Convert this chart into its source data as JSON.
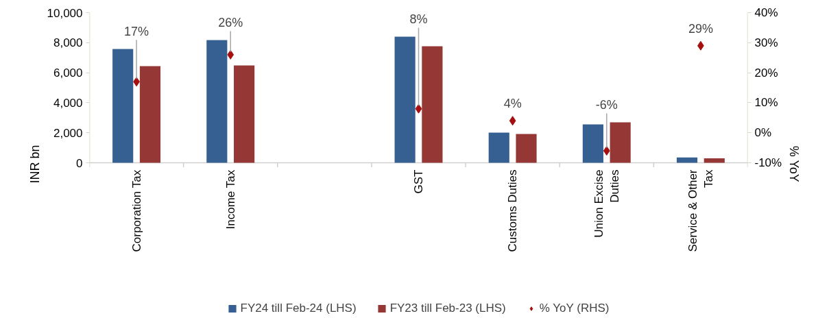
{
  "chart_data": {
    "type": "bar",
    "categories": [
      "Corporation Tax",
      "Income Tax",
      null,
      "GST",
      "Customs Duties",
      "Union Excise\nDuties",
      "Service & Other\nTax"
    ],
    "series": [
      {
        "name": "FY24 till Feb-24 (LHS)",
        "color": "#376092",
        "values": [
          7580,
          8170,
          null,
          8400,
          2010,
          2560,
          350
        ]
      },
      {
        "name": "FY23 till Feb-23 (LHS)",
        "color": "#953735",
        "values": [
          6440,
          6480,
          null,
          7760,
          1920,
          2690,
          300
        ]
      },
      {
        "name": "% YoY (RHS)",
        "type": "scatter",
        "axis": "y2",
        "marker": "diamond",
        "color": "#a50f0f",
        "values": [
          17,
          26,
          null,
          8,
          4,
          -6,
          29
        ],
        "value_labels": [
          "17%",
          "26%",
          null,
          "8%",
          "4%",
          "-6%",
          "29%"
        ]
      }
    ],
    "ylabel": "INR bn",
    "y2label": "% YoY",
    "ylim": [
      0,
      10000
    ],
    "yticks": [
      {
        "value": 0,
        "label": "0"
      },
      {
        "value": 2000,
        "label": "2,000"
      },
      {
        "value": 4000,
        "label": "4,000"
      },
      {
        "value": 6000,
        "label": "6,000"
      },
      {
        "value": 8000,
        "label": "8,000"
      },
      {
        "value": 10000,
        "label": "10,000"
      }
    ],
    "y2lim": [
      -10,
      40
    ],
    "y2ticks": [
      {
        "value": -10,
        "label": "-10%"
      },
      {
        "value": 0,
        "label": "0%"
      },
      {
        "value": 10,
        "label": "10%"
      },
      {
        "value": 20,
        "label": "20%"
      },
      {
        "value": 30,
        "label": "30%"
      },
      {
        "value": 40,
        "label": "40%"
      }
    ],
    "grid": false,
    "legend": "bottom"
  }
}
